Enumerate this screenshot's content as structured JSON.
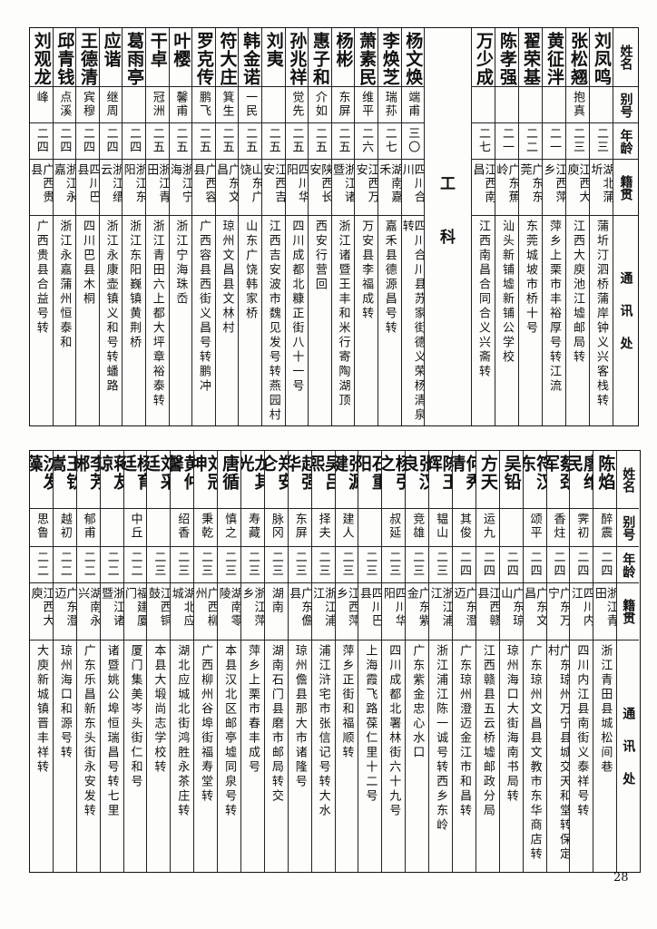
{
  "headers": {
    "name": "姓名",
    "alias": "别号",
    "age": "年龄",
    "origin": "籍贯",
    "address": "通讯处"
  },
  "top_table": {
    "department": [
      "工",
      "科"
    ],
    "left_columns": [
      {
        "name": "刘观龙",
        "alias": "峰",
        "age": "二四",
        "origin": "广西贵县",
        "address": "广西贵县合益号转"
      },
      {
        "name": "邱青钱",
        "alias": "点溪",
        "age": "二四",
        "origin": "浙江永嘉",
        "address": "浙江永嘉蒲州恒泰和"
      },
      {
        "name": "王德清",
        "alias": "宾穆",
        "age": "二四",
        "origin": "四川巴县",
        "address": "四川巴县木桐"
      },
      {
        "name": "应谐",
        "alias": "继周",
        "age": "二四",
        "origin": "浙江缙云",
        "address": "浙江永康壶镇义和号转蟠路"
      },
      {
        "name": "葛雨亭",
        "alias": "",
        "age": "二四",
        "origin": "浙江东阳",
        "address": "浙江东阳巍镇黄荆桥"
      },
      {
        "name": "干卓",
        "alias": "冠洲",
        "age": "二五",
        "origin": "浙江青田",
        "address": "浙江青田六上都大坪章裕泰转"
      },
      {
        "name": "叶樱",
        "alias": "馨甫",
        "age": "二五",
        "origin": "浙江宁海",
        "address": "浙江宁海珠岙"
      },
      {
        "name": "罗克传",
        "alias": "鹏飞",
        "age": "二五",
        "origin": "广西容县",
        "address": "广西容县西街义昌号转鹏冲"
      },
      {
        "name": "符大庄",
        "alias": "箕生",
        "age": "二五",
        "origin": "广东文昌",
        "address": "琼州文昌县文林村"
      },
      {
        "name": "韩金诺",
        "alias": "一民",
        "age": "二五",
        "origin": "山东广饶",
        "address": "山东广饶韩家桥"
      },
      {
        "name": "刘夷",
        "alias": "",
        "age": "二五",
        "origin": "江西吉安",
        "address": "江西吉安波市魏见发号转燕园村"
      },
      {
        "name": "孙兆祥",
        "alias": "觉先",
        "age": "二五",
        "origin": "四川华阳",
        "address": "四川成都北糠正街八十一号"
      },
      {
        "name": "惠子和",
        "alias": "介如",
        "age": "二五",
        "origin": "陕西长安",
        "address": "西安行营回"
      },
      {
        "name": "杨彬",
        "alias": "东屏",
        "age": "二五",
        "origin": "浙江诸暨",
        "address": "浙江诸暨王丰和米行寄陶湖顶"
      },
      {
        "name": "萧素民",
        "alias": "维平",
        "age": "二六",
        "origin": "江西万安",
        "address": "万安县李福成转"
      },
      {
        "name": "李焕芝",
        "alias": "瑞荪",
        "age": "二七",
        "origin": "湖南嘉禾",
        "address": "嘉禾县德源昌号转"
      },
      {
        "name": "杨文焕",
        "alias": "端甫",
        "age": "三〇",
        "origin": "四川合川",
        "address": "四川合川县苏家街德义荣杨清泉转"
      }
    ],
    "right_columns": [
      {
        "name": "万少成",
        "alias": "",
        "age": "二七",
        "origin": "江西南昌",
        "address": "江西南昌合同合义兴斋转"
      },
      {
        "name": "陈孝强",
        "alias": "",
        "age": "二一",
        "origin": "广东蕉岭",
        "address": "汕头新铺墟新铺公学校"
      },
      {
        "name": "翟荣基",
        "alias": "",
        "age": "二二",
        "origin": "广东东莞",
        "address": "东莞城坡市桥十号"
      },
      {
        "name": "黄征泮",
        "alias": "",
        "age": "二一",
        "origin": "江西萍乡",
        "address": "萍乡上栗市丰裕厚号转江流"
      },
      {
        "name": "张松翘",
        "alias": "抱真",
        "age": "二三",
        "origin": "江西大庾",
        "address": "江西大庾池江墟邮局转"
      },
      {
        "name": "刘凤鸣",
        "alias": "",
        "age": "二三",
        "origin": "湖北蒲圻",
        "address": "蒲圻汀泗桥蒲岸钟义兴客栈转"
      }
    ]
  },
  "bottom_table": {
    "columns": [
      {
        "name": "沈发藻",
        "alias": "思鲁",
        "age": "二二",
        "origin": "江西大庾",
        "address": "大庾新城镇晋丰祥转"
      },
      {
        "name": "王钦嵩",
        "alias": "越初",
        "age": "二二",
        "origin": "广东澄迈",
        "address": "琼州海口和源号转"
      },
      {
        "name": "李芳郴",
        "alias": "郁甫",
        "age": "二二",
        "origin": "湖南永兴",
        "address": "广东乐昌新东头街永安发转"
      },
      {
        "name": "蒋友谅",
        "alias": "",
        "age": "二二",
        "origin": "浙江诸暨",
        "address": "诸暨姚公埠恒瑞昌号转七里"
      },
      {
        "name": "杨育廷",
        "alias": "中丘",
        "age": "二二",
        "origin": "福建厦门",
        "address": "厦门集美岑头街仁和号"
      },
      {
        "name": "刘采廷",
        "alias": "",
        "age": "二三",
        "origin": "江西铜鼓",
        "address": "本县大塅尚志学校转"
      },
      {
        "name": "黄仲馨",
        "alias": "绍香",
        "age": "二三",
        "origin": "湖北应城",
        "address": "湖北应城北街鸿胜永茶庄转"
      },
      {
        "name": "刘冠坤",
        "alias": "秉乾",
        "age": "二三",
        "origin": "广西柳州",
        "address": "广西柳州谷埠街福寿堂转"
      },
      {
        "name": "唐循",
        "alias": "慎之",
        "age": "二三",
        "origin": "湖南零陵",
        "address": "本县汉北区邮亭墟同泉号转"
      },
      {
        "name": "龙其光",
        "alias": "寿藏",
        "age": "二三",
        "origin": "浙江萍乡",
        "address": "萍乡上栗市春丰成号"
      },
      {
        "name": "郑安仑",
        "alias": "脉冈",
        "age": "二三",
        "origin": "湖南",
        "address": "湖南石门县磨市邮局转交"
      },
      {
        "name": "赵强华",
        "alias": "东屏",
        "age": "二三",
        "origin": "广东儋县",
        "address": "琼州儋县那大市诸隆号"
      },
      {
        "name": "吴吕熙",
        "alias": "择夫",
        "age": "二三",
        "origin": "浙江浦江",
        "address": "浦江浒宅市张信记号转大水"
      },
      {
        "name": "张源健",
        "alias": "建人",
        "age": "二三",
        "origin": "江西萍乡",
        "address": "萍乡正街和福顺转"
      },
      {
        "name": "石重阳",
        "alias": "",
        "age": "二三",
        "origin": "四川巴县",
        "address": "上海霞飞路葆仁里十二号"
      },
      {
        "name": "杨引之",
        "alias": "叔延",
        "age": "二三",
        "origin": "四川华阳",
        "address": "四川成都北署林街六十九号"
      },
      {
        "name": "张汉良",
        "alias": "竞雄",
        "age": "二三",
        "origin": "广东紫金",
        "address": "广东紫金忠心水口"
      },
      {
        "name": "陈玉辉",
        "alias": "韫山",
        "age": "二三",
        "origin": "浙江浦江",
        "address": "浙江浦江陈一诚号转西乡东岭"
      },
      {
        "name": "何秀清",
        "alias": "其俊",
        "age": "二四",
        "origin": "广东澄迈",
        "address": "广东琼州澄迈金江市和昌转"
      },
      {
        "name": "方天",
        "alias": "运九",
        "age": "二四",
        "origin": "江西赣县",
        "address": "江西赣县五云桥墟邮政分局"
      },
      {
        "name": "吴铅",
        "alias": "",
        "age": "二四",
        "origin": "广东琼山",
        "address": "琼州海口大街海南书局转"
      },
      {
        "name": "符汉东",
        "alias": "颂平",
        "age": "二四",
        "origin": "广东文昌",
        "address": "广东琼州文昌县文教市东华商店转"
      },
      {
        "name": "蔡劲军",
        "alias": "香炷",
        "age": "二四",
        "origin": "广东万宁",
        "address": "广东琼州万宁县城交天和堂转保定村"
      },
      {
        "name": "廖维民",
        "alias": "霁初",
        "age": "二四",
        "origin": "四川内江",
        "address": "四川内江县南街义泰祥号转"
      },
      {
        "name": "陈焰",
        "alias": "醉震",
        "age": "二四",
        "origin": "浙江青田",
        "address": "浙江青田县城松间巷"
      }
    ]
  },
  "page_number": "28"
}
